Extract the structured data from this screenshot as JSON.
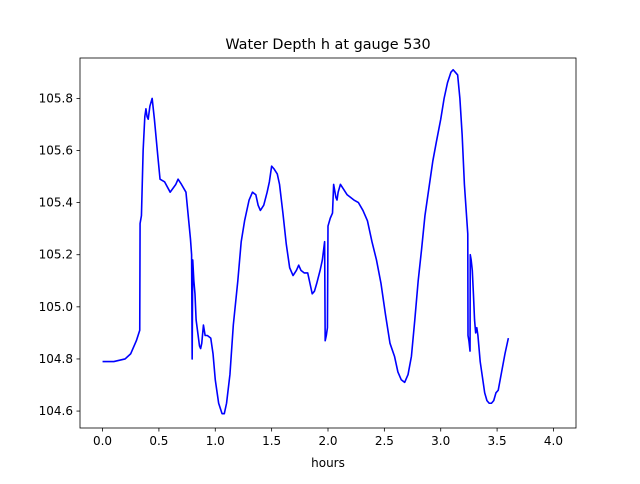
{
  "chart_data": {
    "type": "line",
    "title": "Water Depth h at gauge 530",
    "xlabel": "hours",
    "ylabel": "",
    "xlim": [
      -0.2,
      4.2
    ],
    "ylim": [
      104.535,
      105.955
    ],
    "x_ticks": [
      0.0,
      0.5,
      1.0,
      1.5,
      2.0,
      2.5,
      3.0,
      3.5,
      4.0
    ],
    "x_tick_labels": [
      "0.0",
      "0.5",
      "1.0",
      "1.5",
      "2.0",
      "2.5",
      "3.0",
      "3.5",
      "4.0"
    ],
    "y_ticks": [
      104.6,
      104.8,
      105.0,
      105.2,
      105.4,
      105.6,
      105.8
    ],
    "y_tick_labels": [
      "104.6",
      "104.8",
      "105.0",
      "105.2",
      "105.4",
      "105.6",
      "105.8"
    ],
    "grid": false,
    "legend": "none",
    "series": [
      {
        "color": "#0000ff",
        "points": [
          [
            0.0,
            104.79
          ],
          [
            0.1,
            104.79
          ],
          [
            0.2,
            104.8
          ],
          [
            0.25,
            104.82
          ],
          [
            0.3,
            104.87
          ],
          [
            0.33,
            104.91
          ],
          [
            0.333,
            105.32
          ],
          [
            0.345,
            105.35
          ],
          [
            0.36,
            105.6
          ],
          [
            0.375,
            105.73
          ],
          [
            0.385,
            105.76
          ],
          [
            0.395,
            105.73
          ],
          [
            0.405,
            105.72
          ],
          [
            0.42,
            105.77
          ],
          [
            0.44,
            105.8
          ],
          [
            0.46,
            105.72
          ],
          [
            0.49,
            105.58
          ],
          [
            0.51,
            105.49
          ],
          [
            0.55,
            105.48
          ],
          [
            0.6,
            105.44
          ],
          [
            0.65,
            105.47
          ],
          [
            0.67,
            105.49
          ],
          [
            0.7,
            105.47
          ],
          [
            0.74,
            105.44
          ],
          [
            0.76,
            105.35
          ],
          [
            0.78,
            105.26
          ],
          [
            0.79,
            105.2
          ],
          [
            0.795,
            104.8
          ],
          [
            0.8,
            105.18
          ],
          [
            0.81,
            105.1
          ],
          [
            0.82,
            105.05
          ],
          [
            0.83,
            104.95
          ],
          [
            0.845,
            104.9
          ],
          [
            0.86,
            104.85
          ],
          [
            0.87,
            104.84
          ],
          [
            0.88,
            104.86
          ],
          [
            0.895,
            104.93
          ],
          [
            0.91,
            104.89
          ],
          [
            0.93,
            104.89
          ],
          [
            0.96,
            104.88
          ],
          [
            0.98,
            104.82
          ],
          [
            1.0,
            104.72
          ],
          [
            1.03,
            104.63
          ],
          [
            1.06,
            104.59
          ],
          [
            1.08,
            104.59
          ],
          [
            1.1,
            104.63
          ],
          [
            1.13,
            104.74
          ],
          [
            1.16,
            104.93
          ],
          [
            1.2,
            105.1
          ],
          [
            1.23,
            105.25
          ],
          [
            1.26,
            105.33
          ],
          [
            1.3,
            105.41
          ],
          [
            1.33,
            105.44
          ],
          [
            1.36,
            105.43
          ],
          [
            1.38,
            105.39
          ],
          [
            1.4,
            105.37
          ],
          [
            1.43,
            105.39
          ],
          [
            1.46,
            105.44
          ],
          [
            1.48,
            105.48
          ],
          [
            1.5,
            105.54
          ],
          [
            1.52,
            105.53
          ],
          [
            1.55,
            105.51
          ],
          [
            1.57,
            105.47
          ],
          [
            1.6,
            105.36
          ],
          [
            1.63,
            105.24
          ],
          [
            1.66,
            105.15
          ],
          [
            1.69,
            105.12
          ],
          [
            1.72,
            105.14
          ],
          [
            1.74,
            105.16
          ],
          [
            1.76,
            105.14
          ],
          [
            1.79,
            105.13
          ],
          [
            1.82,
            105.13
          ],
          [
            1.84,
            105.09
          ],
          [
            1.86,
            105.05
          ],
          [
            1.88,
            105.06
          ],
          [
            1.9,
            105.09
          ],
          [
            1.93,
            105.14
          ],
          [
            1.95,
            105.18
          ],
          [
            1.97,
            105.25
          ],
          [
            1.975,
            104.87
          ],
          [
            1.985,
            104.89
          ],
          [
            1.995,
            104.92
          ],
          [
            2.0,
            105.31
          ],
          [
            2.02,
            105.34
          ],
          [
            2.04,
            105.36
          ],
          [
            2.05,
            105.47
          ],
          [
            2.07,
            105.42
          ],
          [
            2.08,
            105.41
          ],
          [
            2.09,
            105.44
          ],
          [
            2.11,
            105.47
          ],
          [
            2.14,
            105.45
          ],
          [
            2.17,
            105.43
          ],
          [
            2.2,
            105.42
          ],
          [
            2.23,
            105.41
          ],
          [
            2.27,
            105.4
          ],
          [
            2.31,
            105.37
          ],
          [
            2.35,
            105.33
          ],
          [
            2.39,
            105.25
          ],
          [
            2.43,
            105.18
          ],
          [
            2.47,
            105.09
          ],
          [
            2.51,
            104.97
          ],
          [
            2.55,
            104.86
          ],
          [
            2.59,
            104.81
          ],
          [
            2.62,
            104.75
          ],
          [
            2.65,
            104.72
          ],
          [
            2.68,
            104.71
          ],
          [
            2.71,
            104.74
          ],
          [
            2.74,
            104.81
          ],
          [
            2.77,
            104.95
          ],
          [
            2.8,
            105.1
          ],
          [
            2.83,
            105.22
          ],
          [
            2.86,
            105.35
          ],
          [
            2.9,
            105.47
          ],
          [
            2.93,
            105.56
          ],
          [
            2.96,
            105.63
          ],
          [
            3.0,
            105.72
          ],
          [
            3.03,
            105.8
          ],
          [
            3.06,
            105.86
          ],
          [
            3.09,
            105.9
          ],
          [
            3.11,
            105.91
          ],
          [
            3.13,
            105.9
          ],
          [
            3.15,
            105.89
          ],
          [
            3.17,
            105.8
          ],
          [
            3.19,
            105.66
          ],
          [
            3.21,
            105.47
          ],
          [
            3.24,
            105.28
          ],
          [
            3.242,
            104.89
          ],
          [
            3.25,
            104.87
          ],
          [
            3.26,
            104.83
          ],
          [
            3.262,
            105.2
          ],
          [
            3.27,
            105.18
          ],
          [
            3.28,
            105.14
          ],
          [
            3.29,
            105.05
          ],
          [
            3.3,
            104.95
          ],
          [
            3.31,
            104.9
          ],
          [
            3.32,
            104.92
          ],
          [
            3.33,
            104.89
          ],
          [
            3.35,
            104.79
          ],
          [
            3.37,
            104.73
          ],
          [
            3.39,
            104.67
          ],
          [
            3.41,
            104.64
          ],
          [
            3.43,
            104.63
          ],
          [
            3.45,
            104.63
          ],
          [
            3.47,
            104.64
          ],
          [
            3.49,
            104.67
          ],
          [
            3.51,
            104.68
          ],
          [
            3.54,
            104.75
          ],
          [
            3.57,
            104.82
          ],
          [
            3.6,
            104.88
          ]
        ]
      }
    ]
  }
}
